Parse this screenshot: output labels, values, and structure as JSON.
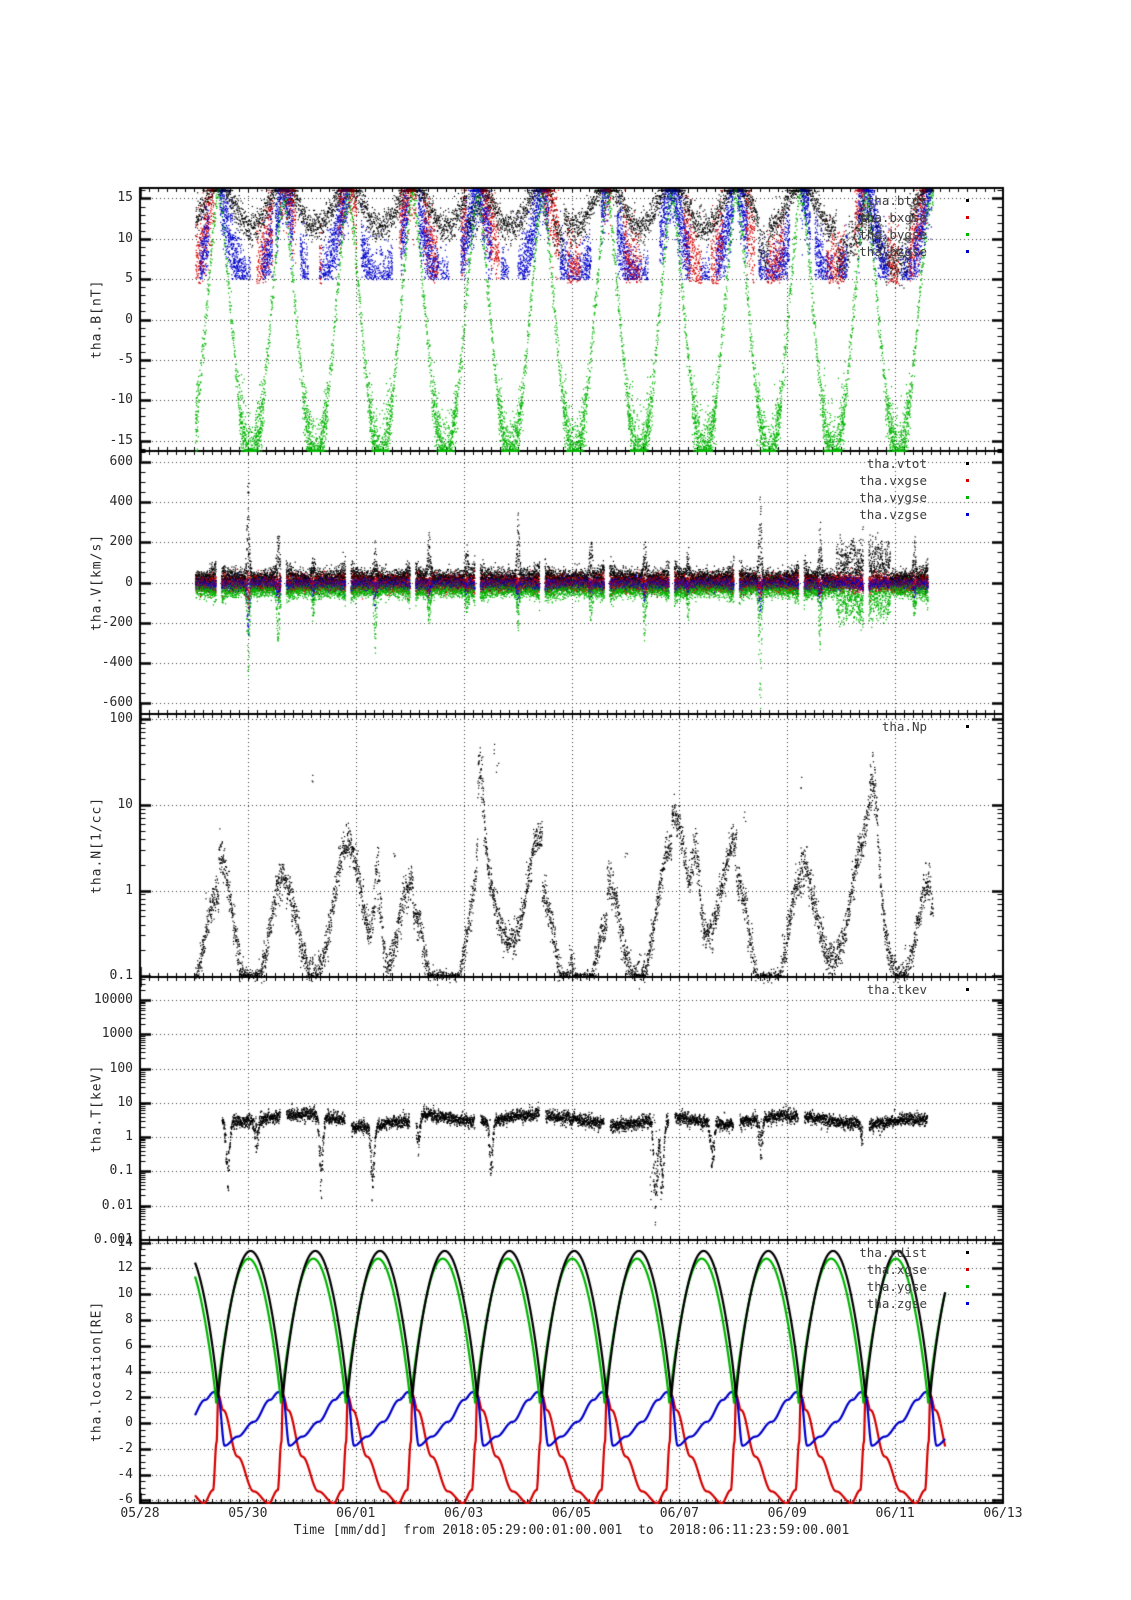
{
  "top_mark": "-",
  "chart_data": {
    "type": "scatter",
    "description": "Five stacked time-series panels of THEMIS-A (tha) spacecraft data: magnetic field B, plasma velocity V, density N, temperature T, and spacecraft GSE location.",
    "x_axis": {
      "title": "Time [mm/dd]  from 2018:05:29:00:01:00.001  to  2018:06:11:23:59:00.001",
      "tick_labels": [
        "05/28",
        "05/30",
        "06/01",
        "06/03",
        "06/05",
        "06/07",
        "06/09",
        "06/11",
        "06/13"
      ],
      "tick_days": [
        0,
        2,
        4,
        6,
        8,
        10,
        12,
        14,
        16
      ],
      "minor_step_days": 0.16667,
      "range_days": [
        0,
        16
      ],
      "data_start_day": 1.0007,
      "data_end_day": 14.9993
    },
    "orbit": {
      "perigee_first_day": 1.45,
      "period_days": 1.2
    },
    "colors": {
      "black": "#000000",
      "red": "#d40000",
      "green": "#00b400",
      "blue": "#0000cc"
    },
    "panels": [
      {
        "id": "B",
        "ylabel": "tha.B[nT]",
        "scale": "linear",
        "ylim": [
          -16.3,
          16.3
        ],
        "yticks": [
          15,
          10,
          5,
          0,
          -5,
          -10,
          -15
        ],
        "ytick_labels": [
          "15",
          "10",
          "5",
          "0",
          "-5",
          "-10",
          "-15"
        ],
        "minor_step": 1,
        "legend": [
          {
            "label": "tha.btot",
            "color": "#000000"
          },
          {
            "label": "tha.bxgse",
            "color": "#d40000"
          },
          {
            "label": "tha.bygse",
            "color": "#00b400"
          },
          {
            "label": "tha.bzgse",
            "color": "#0000cc"
          }
        ],
        "model": {
          "step": 0.0025,
          "t_start": 1.02,
          "t_end": 14.7,
          "clip_top": 16.1,
          "green": {
            "base": 16.2,
            "amp": 33,
            "exp": 1.35,
            "noise": 1.1,
            "bottom_extra_below": -10,
            "bottom_jitter": 2.0
          },
          "blue": {
            "base": 17.2,
            "amp": 13.5,
            "exp": 1.05,
            "noise": 2.2,
            "min_draw": 5.0,
            "gate": [
              0.37,
              0.91,
              -0.5
            ]
          },
          "red": {
            "base": 17.8,
            "amp": 12.0,
            "exp": 1.25,
            "noise": 2.4,
            "min_draw": 4.5,
            "gate": [
              0.53,
              1.31,
              0.25
            ]
          },
          "black": {
            "base": 17.3,
            "amp": 5.8,
            "exp": 1.6,
            "noise": 0.9,
            "dips": [
              [
                12.9,
                14.25,
                3.5
              ],
              [
                6.05,
                6.3,
                2.5
              ],
              [
                7.65,
                7.85,
                2.5
              ],
              [
                11.45,
                11.65,
                2.2
              ]
            ]
          }
        }
      },
      {
        "id": "V",
        "ylabel": "tha.V[km/s]",
        "scale": "linear",
        "ylim": [
          -655,
          655
        ],
        "yticks": [
          600,
          400,
          200,
          0,
          -200,
          -400,
          -600
        ],
        "ytick_labels": [
          "600",
          "400",
          "200",
          "0",
          "-200",
          "-400",
          "-600"
        ],
        "minor_step": 50,
        "legend": [
          {
            "label": "tha.vtot",
            "color": "#000000"
          },
          {
            "label": "tha.vxgse",
            "color": "#d40000"
          },
          {
            "label": "tha.vygse",
            "color": "#00b400"
          },
          {
            "label": "tha.vzgse",
            "color": "#0000cc"
          }
        ],
        "model": {
          "step": 0.0025,
          "t_start": 1.02,
          "t_end": 14.7,
          "gap_half": 0.05,
          "base": {
            "black": [
              22,
              22
            ],
            "red": [
              0,
              20
            ],
            "green": [
              -28,
              20
            ],
            "blue": [
              0,
              14
            ]
          },
          "edge": {
            "decay": 0.09,
            "black": 150,
            "green": 110,
            "red": 55,
            "blue": 45
          },
          "spike_width": 0.035,
          "spikes": [
            [
              2.0,
              530,
              -440,
              -160,
              -300
            ],
            [
              2.55,
              210,
              -280,
              -60,
              -80
            ],
            [
              3.2,
              120,
              -160,
              -40,
              -60
            ],
            [
              4.35,
              170,
              -310,
              -50,
              -120
            ],
            [
              5.35,
              240,
              -190,
              -60,
              -80
            ],
            [
              6.05,
              150,
              -120,
              -40,
              -50
            ],
            [
              7.0,
              310,
              -190,
              -50,
              -90
            ],
            [
              8.35,
              250,
              -160,
              -50,
              -70
            ],
            [
              9.35,
              210,
              -270,
              -60,
              -90
            ],
            [
              10.15,
              140,
              -140,
              -40,
              -60
            ],
            [
              11.49,
              430,
              -660,
              -80,
              -160
            ],
            [
              12.6,
              310,
              -310,
              -70,
              -100
            ],
            [
              13.45,
              330,
              -210,
              -60,
              -90
            ],
            [
              14.35,
              200,
              -150,
              -50,
              -60
            ]
          ],
          "broad": [
            [
              12.9,
              13.9,
              170,
              -150
            ]
          ]
        }
      },
      {
        "id": "N",
        "ylabel": "tha.N[1/cc]",
        "scale": "log",
        "ylim": [
          0.098,
          115
        ],
        "yticks": [
          100,
          10,
          1,
          0.1
        ],
        "ytick_labels": [
          "100",
          "10",
          "1",
          "0.1"
        ],
        "legend": [
          {
            "label": "tha.Np",
            "color": "#000000"
          }
        ],
        "model": {
          "step": 0.003,
          "t_start": 1.02,
          "t_end": 14.7,
          "base": -1.05,
          "perigee_amp": 1.35,
          "perigee_exp": 1.2,
          "slow_amp": 0.25,
          "slow_period": 3.1,
          "noise": 0.1,
          "floor_log": -1.0,
          "floor_prob": 0.55,
          "bumps": [
            [
              4.4,
              1.15,
              0.1
            ],
            [
              6.3,
              0.9,
              0.08
            ],
            [
              8.0,
              0.8,
              0.1
            ],
            [
              10.3,
              0.9,
              0.09
            ],
            [
              13.6,
              1.0,
              0.12
            ]
          ],
          "outliers": [
            [
              3.2,
              20
            ],
            [
              6.55,
              45
            ],
            [
              6.62,
              28
            ],
            [
              11.2,
              8
            ],
            [
              12.25,
              18
            ],
            [
              4.7,
              3
            ],
            [
              9.0,
              2.5
            ]
          ]
        }
      },
      {
        "id": "T",
        "ylabel": "tha.T[keV]",
        "scale": "log",
        "ylim": [
          0.001,
          47000
        ],
        "yticks": [
          10000,
          1000,
          100,
          10,
          1,
          0.1,
          0.01,
          0.001
        ],
        "ytick_labels": [
          "10000",
          "1000",
          "100",
          "10",
          "1",
          "0.1",
          "0.01",
          "0.001"
        ],
        "legend": [
          {
            "label": "tha.tkev",
            "color": "#000000"
          }
        ],
        "model": {
          "step": 0.003,
          "t_start": 1.5,
          "t_end": 14.68,
          "gap_half": 0.06,
          "base_log": 0.55,
          "slow_amp": 0.1,
          "slow_period": 2.3,
          "noise": 0.09,
          "dip_width": 0.045,
          "dips": [
            [
              1.62,
              0.12
            ],
            [
              2.15,
              0.9
            ],
            [
              3.35,
              0.09
            ],
            [
              4.3,
              0.12
            ],
            [
              5.15,
              0.6
            ],
            [
              6.5,
              0.2
            ],
            [
              9.55,
              0.018
            ],
            [
              9.67,
              0.06
            ],
            [
              10.6,
              0.3
            ],
            [
              11.5,
              0.6
            ],
            [
              13.4,
              0.8
            ]
          ],
          "deep_column": [
            9.55,
            0.1,
            0.015,
            5.0
          ]
        }
      },
      {
        "id": "LOC",
        "ylabel": "tha.location[RE]",
        "scale": "linear",
        "ylim": [
          -6.2,
          14.2
        ],
        "yticks": [
          14,
          12,
          10,
          8,
          6,
          4,
          2,
          0,
          -2,
          -4,
          -6
        ],
        "ytick_labels": [
          "14",
          "12",
          "10",
          "8",
          "6",
          "4",
          "2",
          "0",
          "-2",
          "-4",
          "-6"
        ],
        "minor_step": 0.5,
        "legend": [
          {
            "label": "tha.rdist",
            "color": "#000000"
          },
          {
            "label": "tha.xgse",
            "color": "#d40000"
          },
          {
            "label": "tha.ygse",
            "color": "#00b400"
          },
          {
            "label": "tha.zgse",
            "color": "#0000cc"
          }
        ],
        "model": {
          "step": 0.004,
          "t_start": 1.02,
          "t_end": 14.93,
          "line_width": 2.2,
          "rdist": {
            "peri": 1.85,
            "apo": 13.35,
            "exp": 0.8,
            "phase_shift": 0
          },
          "ygse": {
            "peri": 1.45,
            "apo": 12.75,
            "exp": 0.85,
            "phase_shift": 0.03
          },
          "xgse_keys": [
            [
              0,
              2.2
            ],
            [
              0.08,
              1.0
            ],
            [
              0.3,
              -2.6
            ],
            [
              0.55,
              -5.3
            ],
            [
              0.78,
              -6.2
            ],
            [
              0.92,
              -5.2
            ],
            [
              0.975,
              -1.5
            ],
            [
              1,
              2.2
            ]
          ],
          "zgse_keys": [
            [
              0,
              2.1
            ],
            [
              0.1,
              -1.75
            ],
            [
              0.3,
              -1.05
            ],
            [
              0.55,
              0.1
            ],
            [
              0.8,
              1.8
            ],
            [
              0.93,
              2.4
            ],
            [
              1,
              2.1
            ]
          ]
        }
      }
    ]
  }
}
